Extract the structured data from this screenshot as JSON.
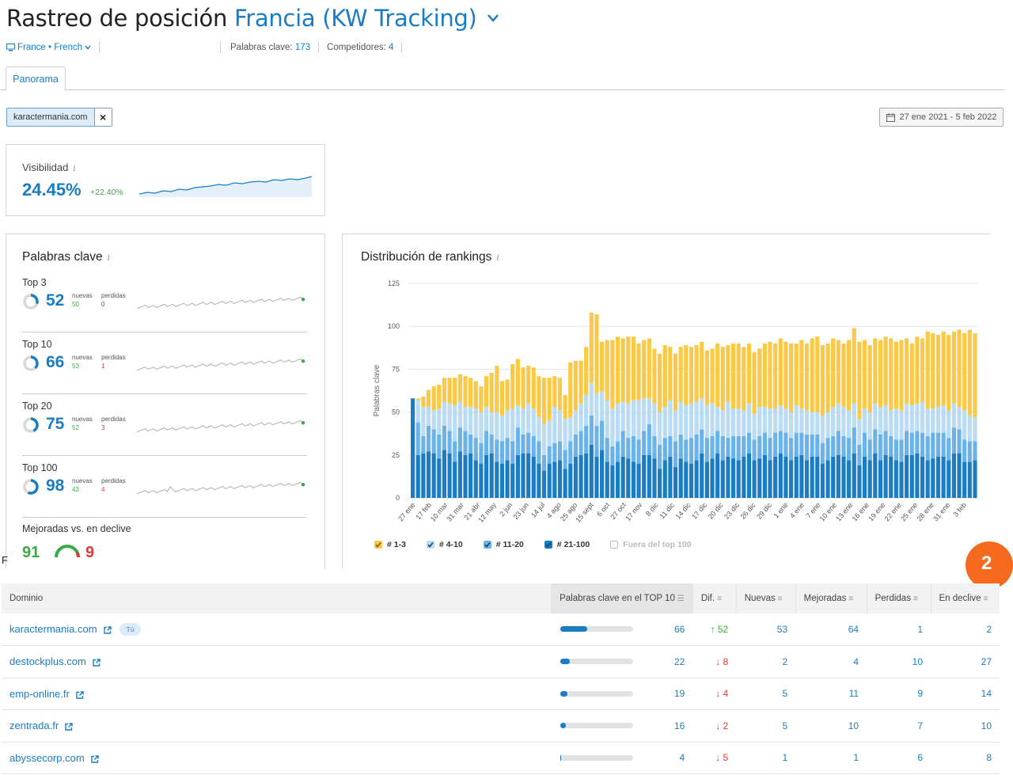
{
  "header": {
    "title_prefix": "Rastreo de posición",
    "project": "Francia (KW Tracking)",
    "chevron": "⌄"
  },
  "subbar": {
    "location": "France • French",
    "keywords_label": "Palabras clave:",
    "keywords_count": "173",
    "competitors_label": "Competidores:",
    "competitors_count": "4"
  },
  "tabs": [
    {
      "label": "Panorama",
      "active": true
    }
  ],
  "filter": {
    "domain": "karactermania.com",
    "remove": "×"
  },
  "date_range": "27 ene 2021 - 5 feb 2022",
  "visibility": {
    "title": "Visibilidad",
    "info": "i",
    "value": "24.45%",
    "change": "+22.40%"
  },
  "keywords_card": {
    "title": "Palabras clave",
    "info": "i",
    "new_label": "nuevas",
    "lost_label": "perdidas",
    "blocks": [
      {
        "label": "Top 3",
        "value": "52",
        "new": "50",
        "lost": "0",
        "fill": 0.3
      },
      {
        "label": "Top 10",
        "value": "66",
        "new": "53",
        "lost": "1",
        "fill": 0.38
      },
      {
        "label": "Top 20",
        "value": "75",
        "new": "52",
        "lost": "3",
        "fill": 0.43
      },
      {
        "label": "Top 100",
        "value": "98",
        "new": "43",
        "lost": "4",
        "fill": 0.57
      }
    ],
    "improved_title": "Mejoradas vs. en declive",
    "improved": "91",
    "declined": "9"
  },
  "distribution": {
    "title": "Distribución de rankings",
    "info": "i",
    "legend": [
      {
        "label": "# 1-3",
        "color": "#f9c947",
        "on": true
      },
      {
        "label": "# 4-10",
        "color": "#b9dcf4",
        "on": true
      },
      {
        "label": "# 11-20",
        "color": "#6ab2e7",
        "on": true
      },
      {
        "label": "# 21-100",
        "color": "#1a7dc4",
        "on": true
      },
      {
        "label": "Fuera del top 100",
        "color": "#ffffff",
        "on": false
      }
    ]
  },
  "chart_data": {
    "type": "bar",
    "stacked": true,
    "ylabel": "Palabras clave",
    "ylim": [
      0,
      125
    ],
    "yticks": [
      0,
      25,
      50,
      75,
      100,
      125
    ],
    "xtick_labels": [
      "27 ene",
      "17 feb",
      "10 mar",
      "31 mar",
      "21 abr",
      "12 may",
      "2 jun",
      "23 jun",
      "14 jul",
      "4 ago",
      "25 ago",
      "15 sept",
      "6 oct",
      "27 oct",
      "17 nov",
      "8 dic",
      "11 dic",
      "14 dic",
      "17 dic",
      "20 dic",
      "23 dic",
      "26 dic",
      "29 dic",
      "1 ene",
      "4 ene",
      "7 ene",
      "10 ene",
      "13 ene",
      "16 ene",
      "19 ene",
      "22 ene",
      "25 ene",
      "28 ene",
      "31 ene",
      "3 feb"
    ],
    "series_order": [
      "# 21-100",
      "# 11-20",
      "# 4-10",
      "# 1-3"
    ],
    "bars": [
      [
        58,
        58,
        58,
        58
      ],
      [
        25,
        44,
        57,
        58
      ],
      [
        26,
        36,
        53,
        59
      ],
      [
        27,
        42,
        53,
        63
      ],
      [
        26,
        40,
        51,
        65
      ],
      [
        23,
        37,
        52,
        66
      ],
      [
        28,
        42,
        56,
        70
      ],
      [
        26,
        39,
        55,
        70
      ],
      [
        21,
        33,
        54,
        70
      ],
      [
        27,
        41,
        56,
        72
      ],
      [
        25,
        39,
        53,
        71
      ],
      [
        26,
        37,
        53,
        70
      ],
      [
        22,
        35,
        52,
        68
      ],
      [
        20,
        32,
        50,
        65
      ],
      [
        25,
        39,
        53,
        71
      ],
      [
        26,
        37,
        50,
        73
      ],
      [
        21,
        34,
        50,
        77
      ],
      [
        20,
        33,
        48,
        68
      ],
      [
        22,
        35,
        51,
        69
      ],
      [
        20,
        33,
        52,
        78
      ],
      [
        25,
        41,
        54,
        81
      ],
      [
        26,
        37,
        52,
        76
      ],
      [
        26,
        38,
        55,
        77
      ],
      [
        24,
        36,
        52,
        76
      ],
      [
        20,
        33,
        47,
        71
      ],
      [
        16,
        25,
        43,
        70
      ],
      [
        20,
        30,
        45,
        70
      ],
      [
        21,
        32,
        53,
        71
      ],
      [
        22,
        33,
        51,
        70
      ],
      [
        17,
        28,
        46,
        60
      ],
      [
        20,
        33,
        47,
        79
      ],
      [
        24,
        37,
        51,
        80
      ],
      [
        25,
        39,
        55,
        80
      ],
      [
        26,
        42,
        60,
        88
      ],
      [
        31,
        48,
        67,
        108
      ],
      [
        24,
        42,
        61,
        107
      ],
      [
        28,
        45,
        62,
        91
      ],
      [
        21,
        35,
        57,
        92
      ],
      [
        19,
        30,
        52,
        92
      ],
      [
        21,
        33,
        55,
        94
      ],
      [
        24,
        39,
        56,
        93
      ],
      [
        23,
        35,
        55,
        94
      ],
      [
        21,
        36,
        57,
        94
      ],
      [
        20,
        34,
        57,
        90
      ],
      [
        25,
        39,
        58,
        92
      ],
      [
        25,
        43,
        58,
        93
      ],
      [
        23,
        36,
        55,
        87
      ],
      [
        17,
        31,
        50,
        84
      ],
      [
        22,
        35,
        53,
        89
      ],
      [
        24,
        36,
        57,
        88
      ],
      [
        18,
        33,
        51,
        84
      ],
      [
        23,
        37,
        56,
        88
      ],
      [
        21,
        34,
        54,
        89
      ],
      [
        20,
        35,
        55,
        88
      ],
      [
        22,
        37,
        56,
        89
      ],
      [
        26,
        40,
        58,
        91
      ],
      [
        21,
        35,
        54,
        86
      ],
      [
        23,
        36,
        55,
        87
      ],
      [
        26,
        39,
        53,
        90
      ],
      [
        22,
        36,
        51,
        88
      ],
      [
        24,
        35,
        56,
        89
      ],
      [
        23,
        36,
        52,
        90
      ],
      [
        22,
        36,
        52,
        90
      ],
      [
        24,
        36,
        51,
        88
      ],
      [
        26,
        38,
        55,
        90
      ],
      [
        22,
        34,
        49,
        85
      ],
      [
        23,
        36,
        53,
        87
      ],
      [
        25,
        38,
        53,
        90
      ],
      [
        22,
        35,
        52,
        91
      ],
      [
        24,
        38,
        52,
        90
      ],
      [
        26,
        39,
        54,
        93
      ],
      [
        24,
        38,
        52,
        91
      ],
      [
        22,
        35,
        50,
        90
      ],
      [
        24,
        38,
        54,
        90
      ],
      [
        25,
        38,
        52,
        92
      ],
      [
        22,
        37,
        51,
        90
      ],
      [
        24,
        37,
        50,
        93
      ],
      [
        24,
        37,
        50,
        94
      ],
      [
        20,
        32,
        48,
        89
      ],
      [
        22,
        35,
        50,
        90
      ],
      [
        24,
        36,
        53,
        93
      ],
      [
        25,
        39,
        55,
        92
      ],
      [
        24,
        36,
        53,
        90
      ],
      [
        22,
        35,
        51,
        92
      ],
      [
        26,
        41,
        55,
        99
      ],
      [
        19,
        31,
        46,
        91
      ],
      [
        24,
        38,
        52,
        92
      ],
      [
        22,
        34,
        50,
        89
      ],
      [
        26,
        40,
        55,
        93
      ],
      [
        22,
        37,
        53,
        92
      ],
      [
        25,
        39,
        54,
        94
      ],
      [
        24,
        36,
        51,
        93
      ],
      [
        22,
        34,
        52,
        91
      ],
      [
        21,
        34,
        51,
        92
      ],
      [
        25,
        39,
        55,
        93
      ],
      [
        25,
        38,
        54,
        90
      ],
      [
        26,
        39,
        55,
        94
      ],
      [
        24,
        38,
        56,
        93
      ],
      [
        22,
        36,
        52,
        97
      ],
      [
        23,
        38,
        52,
        96
      ],
      [
        24,
        38,
        53,
        95
      ],
      [
        24,
        38,
        54,
        97
      ],
      [
        22,
        35,
        51,
        95
      ],
      [
        26,
        41,
        55,
        97
      ],
      [
        26,
        40,
        53,
        98
      ],
      [
        21,
        34,
        51,
        96
      ],
      [
        21,
        33,
        48,
        98
      ],
      [
        22,
        33,
        47,
        96
      ]
    ]
  },
  "table": {
    "headers": [
      "Dominio",
      "Palabras clave en el TOP 10",
      "Dif.",
      "Nuevas",
      "Mejoradas",
      "Perdidas",
      "En declive"
    ],
    "you_label": "Tú",
    "rows": [
      {
        "domain": "karactermania.com",
        "you": true,
        "top10": "66",
        "fill": 0.37,
        "diff": "52",
        "diff_dir": "up",
        "new": "53",
        "improved": "64",
        "lost": "1",
        "declined": "2"
      },
      {
        "domain": "destockplus.com",
        "you": false,
        "top10": "22",
        "fill": 0.13,
        "diff": "8",
        "diff_dir": "down",
        "new": "2",
        "improved": "4",
        "lost": "10",
        "declined": "27"
      },
      {
        "domain": "emp-online.fr",
        "you": false,
        "top10": "19",
        "fill": 0.1,
        "diff": "4",
        "diff_dir": "down",
        "new": "5",
        "improved": "11",
        "lost": "9",
        "declined": "14"
      },
      {
        "domain": "zentrada.fr",
        "you": false,
        "top10": "16",
        "fill": 0.08,
        "diff": "2",
        "diff_dir": "down",
        "new": "5",
        "improved": "10",
        "lost": "7",
        "declined": "10"
      },
      {
        "domain": "abyssecorp.com",
        "you": false,
        "top10": "4",
        "fill": 0.02,
        "diff": "5",
        "diff_dir": "down",
        "new": "1",
        "improved": "1",
        "lost": "6",
        "declined": "8"
      }
    ]
  },
  "stray_text": "F",
  "help_badge": "2"
}
